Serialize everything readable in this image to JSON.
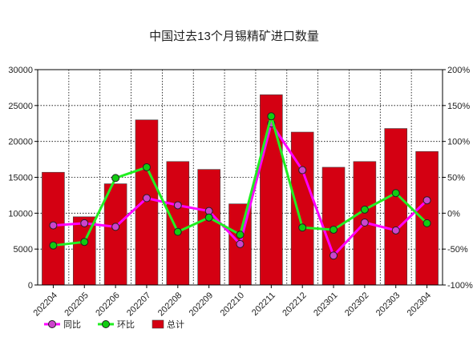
{
  "chart_data": {
    "type": "bar",
    "title": "中国过去13个月锡精矿进口数量",
    "categories": [
      "202204",
      "202205",
      "202206",
      "202207",
      "202208",
      "202209",
      "202210",
      "202211",
      "202212",
      "202301",
      "202302",
      "202303",
      "202304"
    ],
    "ylim_left": [
      0,
      30000
    ],
    "yticks_left": [
      0,
      5000,
      10000,
      15000,
      20000,
      25000,
      30000
    ],
    "ylim_right": [
      -100,
      200
    ],
    "yticks_right": [
      -100,
      -50,
      0,
      50,
      100,
      150,
      200
    ],
    "right_unit": "%",
    "grid": true,
    "legend_position": "bottom-left",
    "series": [
      {
        "name": "总计",
        "kind": "bar",
        "axis": "left",
        "color": "#d40012",
        "values": [
          15700,
          9500,
          14100,
          23000,
          17200,
          16100,
          11300,
          26500,
          21300,
          16400,
          17200,
          21800,
          18600
        ]
      },
      {
        "name": "同比",
        "kind": "line",
        "axis": "right",
        "color": "#ff00ff",
        "marker_color": "#cc44cc",
        "values": [
          -17,
          -14,
          -19,
          21,
          11,
          3,
          -43,
          125,
          60,
          -59,
          -13,
          -24,
          18
        ]
      },
      {
        "name": "环比",
        "kind": "line",
        "axis": "right",
        "color": "#22ee22",
        "marker_color": "#11cc11",
        "values": [
          -45,
          -40,
          49,
          64,
          -26,
          -6,
          -30,
          135,
          -20,
          -23,
          5,
          28,
          -14
        ]
      }
    ]
  }
}
